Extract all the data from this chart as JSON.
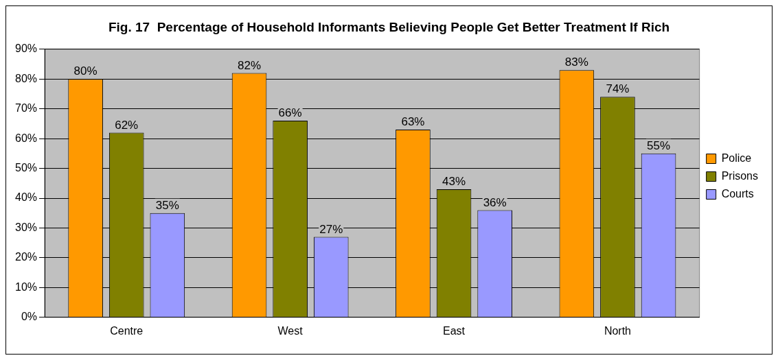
{
  "chart_data": {
    "type": "bar",
    "title": "Fig. 17  Percentage of Household Informants Believing People Get Better Treatment If Rich",
    "categories": [
      "Centre",
      "West",
      "East",
      "North"
    ],
    "series": [
      {
        "name": "Police",
        "color": "#ff9900",
        "values": [
          80,
          82,
          63,
          83
        ],
        "value_labels": [
          "80%",
          "82%",
          "63%",
          "83%"
        ]
      },
      {
        "name": "Prisons",
        "color": "#808000",
        "values": [
          62,
          66,
          43,
          74
        ],
        "value_labels": [
          "62%",
          "66%",
          "43%",
          "74%"
        ]
      },
      {
        "name": "Courts",
        "color": "#9999ff",
        "values": [
          35,
          27,
          36,
          55
        ],
        "value_labels": [
          "35%",
          "27%",
          "36%",
          "55%"
        ]
      }
    ],
    "ylim": [
      0,
      90
    ],
    "yticks": [
      {
        "value": 0,
        "label": "0%"
      },
      {
        "value": 10,
        "label": "10%"
      },
      {
        "value": 20,
        "label": "20%"
      },
      {
        "value": 30,
        "label": "30%"
      },
      {
        "value": 40,
        "label": "40%"
      },
      {
        "value": 50,
        "label": "50%"
      },
      {
        "value": 60,
        "label": "60%"
      },
      {
        "value": 70,
        "label": "70%"
      },
      {
        "value": 80,
        "label": "80%"
      },
      {
        "value": 90,
        "label": "90%"
      }
    ],
    "grid": "y",
    "legend": "right"
  }
}
